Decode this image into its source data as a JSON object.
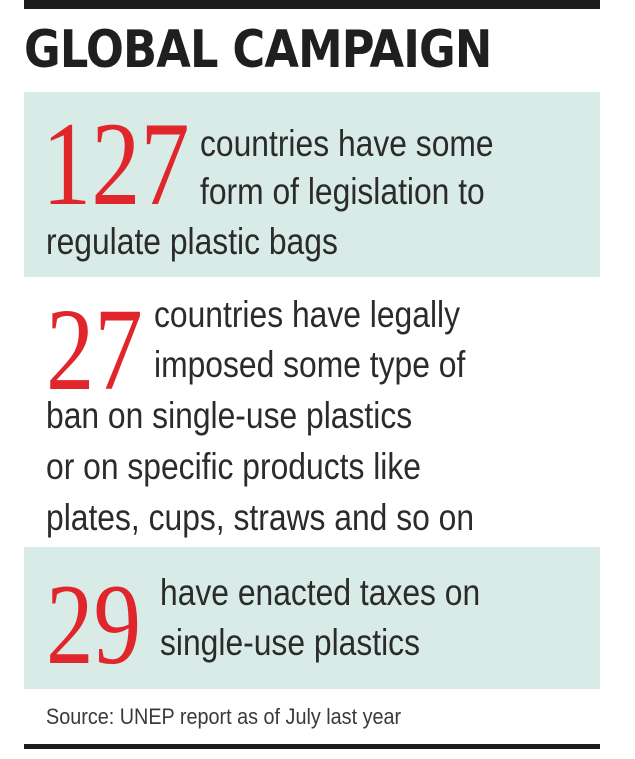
{
  "title": "GLOBAL CAMPAIGN",
  "facts": [
    {
      "number": "127",
      "lines": [
        "countries have some",
        "form of legislation to",
        "regulate plastic bags"
      ]
    },
    {
      "number": "27",
      "lines": [
        "countries have legally",
        "imposed some type of",
        "ban on single-use plastics",
        "or on specific products like",
        "plates, cups, straws and so on"
      ]
    },
    {
      "number": "29",
      "lines": [
        "have enacted taxes on",
        "single-use plastics"
      ]
    }
  ],
  "source": "Source: UNEP report as of July last year",
  "colors": {
    "accent_red": "#e0262b",
    "panel_teal": "#d8ebe7",
    "text": "#2b2b2b"
  }
}
